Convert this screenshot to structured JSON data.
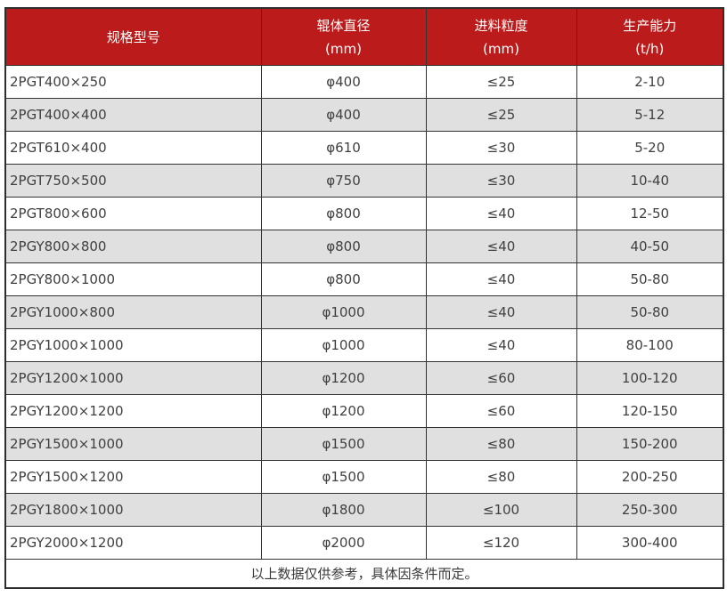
{
  "table": {
    "colors": {
      "header_bg": "#bc1b1b",
      "header_text": "#ffffff",
      "alt_row_bg": "#e0e0e0",
      "border": "#333333",
      "body_text": "#404040"
    },
    "headers": [
      {
        "line1": "规格型号",
        "line2": ""
      },
      {
        "line1": "辊体直径",
        "line2": "(mm)"
      },
      {
        "line1": "进料粒度",
        "line2": "(mm)"
      },
      {
        "line1": "生产能力",
        "line2": "(t/h)"
      }
    ],
    "rows": [
      [
        "2PGT400×250",
        "φ400",
        "≤25",
        "2-10"
      ],
      [
        "2PGT400×400",
        "φ400",
        "≤25",
        "5-12"
      ],
      [
        "2PGT610×400",
        "φ610",
        "≤30",
        "5-20"
      ],
      [
        "2PGT750×500",
        "φ750",
        "≤30",
        "10-40"
      ],
      [
        "2PGT800×600",
        "φ800",
        "≤40",
        "12-50"
      ],
      [
        "2PGY800×800",
        "φ800",
        "≤40",
        "40-50"
      ],
      [
        "2PGY800×1000",
        "φ800",
        "≤40",
        "50-80"
      ],
      [
        "2PGY1000×800",
        "φ1000",
        "≤40",
        "50-80"
      ],
      [
        "2PGY1000×1000",
        "φ1000",
        "≤40",
        "80-100"
      ],
      [
        "2PGY1200×1000",
        "φ1200",
        "≤60",
        "100-120"
      ],
      [
        "2PGY1200×1200",
        "φ1200",
        "≤60",
        "120-150"
      ],
      [
        "2PGY1500×1000",
        "φ1500",
        "≤80",
        "150-200"
      ],
      [
        "2PGY1500×1200",
        "φ1500",
        "≤80",
        "200-250"
      ],
      [
        "2PGY1800×1000",
        "φ1800",
        "≤100",
        "250-300"
      ],
      [
        "2PGY2000×1200",
        "φ2000",
        "≤120",
        "300-400"
      ]
    ],
    "footer": "以上数据仅供参考，具体因条件而定。"
  }
}
